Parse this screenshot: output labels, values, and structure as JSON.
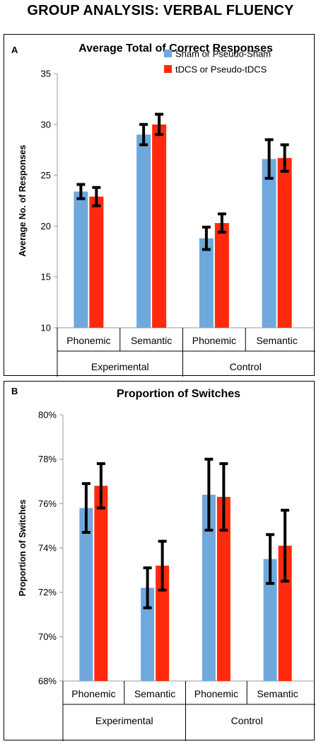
{
  "title": "GROUP ANALYSIS: VERBAL FLUENCY",
  "colors": {
    "sham": "#6fa8dc",
    "tdcs": "#ff2a0d",
    "axis": "#999999",
    "error": "#000000"
  },
  "chart_data": [
    {
      "panel_letter": "A",
      "type": "bar",
      "title": "Average Total of Correct Responses",
      "xlabel": "",
      "ylabel": "Average No. of Responses",
      "ylim": [
        10,
        35
      ],
      "yticks": [
        "10",
        "15",
        "20",
        "25",
        "30",
        "35"
      ],
      "ytick_values": [
        10,
        15,
        20,
        25,
        30,
        35
      ],
      "categories": [
        "Phonemic",
        "Semantic",
        "Phonemic",
        "Semantic"
      ],
      "groups": [
        "Experimental",
        "Control"
      ],
      "legend": "top-right",
      "grid": false,
      "series": [
        {
          "name": "Sham or Pseudo-Sham",
          "values": [
            23.4,
            29.0,
            18.8,
            26.6
          ],
          "errors": [
            0.7,
            1.0,
            1.1,
            1.9
          ]
        },
        {
          "name": "tDCS or Pseudo-tDCS",
          "values": [
            22.9,
            30.0,
            20.3,
            26.7
          ],
          "errors": [
            0.9,
            1.0,
            0.9,
            1.3
          ]
        }
      ]
    },
    {
      "panel_letter": "B",
      "type": "bar",
      "title": "Proportion of Switches",
      "xlabel": "",
      "ylabel": "Proportion of Switches",
      "ylim": [
        68,
        80
      ],
      "yticks": [
        "68%",
        "70%",
        "72%",
        "74%",
        "76%",
        "78%",
        "80%"
      ],
      "ytick_values": [
        68,
        70,
        72,
        74,
        76,
        78,
        80
      ],
      "categories": [
        "Phonemic",
        "Semantic",
        "Phonemic",
        "Semantic"
      ],
      "groups": [
        "Experimental",
        "Control"
      ],
      "legend": "none",
      "grid": false,
      "series": [
        {
          "name": "Sham or Pseudo-Sham",
          "values": [
            75.8,
            72.2,
            76.4,
            73.5
          ],
          "errors": [
            1.1,
            0.9,
            1.6,
            1.1
          ]
        },
        {
          "name": "tDCS or Pseudo-tDCS",
          "values": [
            76.8,
            73.2,
            76.3,
            74.1
          ],
          "errors": [
            1.0,
            1.1,
            1.5,
            1.6
          ]
        }
      ]
    }
  ]
}
